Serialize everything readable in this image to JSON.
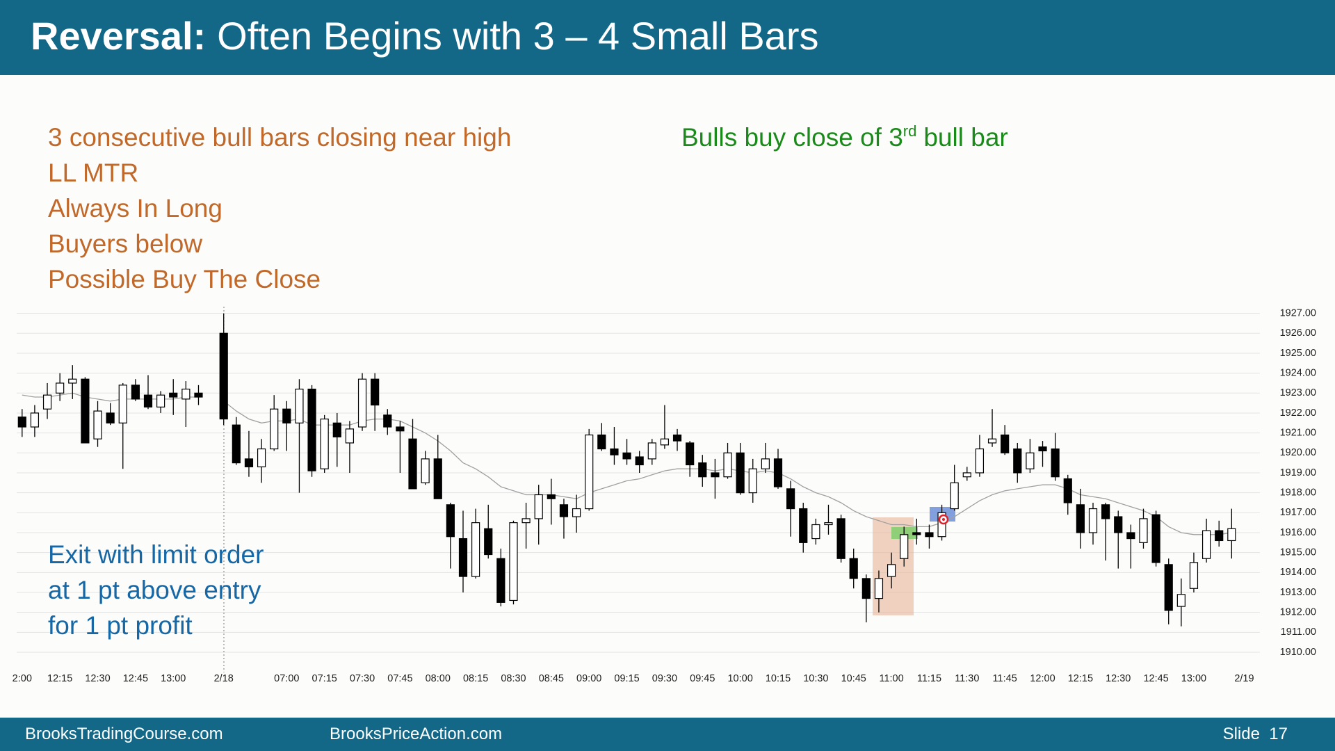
{
  "header": {
    "title_bold": "Reversal:",
    "title_rest": "Often Begins with 3 – 4 Small Bars"
  },
  "annotations": {
    "setup": [
      "3 consecutive bull bars closing near high",
      "LL MTR",
      "Always In Long",
      "Buyers below",
      "Possible Buy The Close"
    ],
    "entry": {
      "before": "Bulls buy close of 3",
      "sup": "rd",
      "after": "bull bar"
    },
    "exit": [
      "Exit with limit order",
      "at 1 pt above entry",
      "for 1 pt profit"
    ]
  },
  "chart_data": {
    "type": "candlestick",
    "categories": [
      "2:00",
      null,
      null,
      "12:15",
      null,
      null,
      "12:30",
      null,
      null,
      "12:45",
      null,
      null,
      "13:00",
      null,
      null,
      null,
      "2/18",
      null,
      null,
      null,
      null,
      "07:00",
      null,
      null,
      "07:15",
      null,
      null,
      "07:30",
      null,
      null,
      "07:45",
      null,
      null,
      "08:00",
      null,
      null,
      "08:15",
      null,
      null,
      "08:30",
      null,
      null,
      "08:45",
      null,
      null,
      "09:00",
      null,
      null,
      "09:15",
      null,
      null,
      "09:30",
      null,
      null,
      "09:45",
      null,
      null,
      "10:00",
      null,
      null,
      "10:15",
      null,
      null,
      "10:30",
      null,
      null,
      "10:45",
      null,
      null,
      "11:00",
      null,
      null,
      "11:15",
      null,
      null,
      "11:30",
      null,
      null,
      "11:45",
      null,
      null,
      "12:00",
      null,
      null,
      "12:15",
      null,
      null,
      "12:30",
      null,
      null,
      "12:45",
      null,
      null,
      "13:00",
      null,
      null,
      null,
      "2/19"
    ],
    "open": [
      1921.8,
      1921.3,
      1922.2,
      1923.0,
      1923.5,
      1923.7,
      1920.7,
      1922.0,
      1921.5,
      1923.4,
      1922.9,
      1922.3,
      1923.0,
      1922.7,
      1923.0,
      null,
      1926.0,
      1921.4,
      1919.7,
      1919.3,
      1920.2,
      1922.2,
      1921.5,
      1923.2,
      1919.2,
      1921.5,
      1920.5,
      1921.3,
      1923.7,
      1921.9,
      1921.3,
      1920.7,
      1918.5,
      1919.7,
      1917.4,
      1915.7,
      1913.8,
      1916.2,
      1914.7,
      1912.6,
      1916.5,
      1916.7,
      1917.9,
      1917.4,
      1916.8,
      1917.2,
      1920.9,
      1920.2,
      1920.0,
      1919.8,
      1919.7,
      1920.4,
      1920.9,
      1920.5,
      1919.5,
      1919.0,
      1918.8,
      1920.0,
      1918.0,
      1919.2,
      1919.7,
      1918.2,
      1917.2,
      1915.7,
      1916.4,
      1916.7,
      1914.7,
      1913.7,
      1912.7,
      1913.8,
      1914.7,
      1916.0,
      1916.0,
      1915.8,
      1917.2,
      1918.8,
      1919.0,
      1920.5,
      1920.9,
      1920.2,
      1919.2,
      1920.3,
      1920.2,
      1918.7,
      1917.4,
      1916.0,
      1917.4,
      1916.8,
      1916.0,
      1915.5,
      1916.9,
      1914.4,
      1912.3,
      1913.2,
      1914.7,
      1916.1,
      1915.6,
      null
    ],
    "high": [
      1922.2,
      1922.4,
      1923.5,
      1924.0,
      1924.4,
      1923.8,
      1922.6,
      1922.5,
      1923.5,
      1923.7,
      1923.9,
      1923.1,
      1923.7,
      1923.6,
      1923.4,
      null,
      1927.0,
      1921.8,
      1921.1,
      1920.7,
      1922.9,
      1922.6,
      1923.7,
      1923.4,
      1921.9,
      1922.0,
      1921.6,
      1924.0,
      1924.0,
      1922.2,
      1921.6,
      1921.7,
      1920.1,
      1920.9,
      1917.5,
      1917.1,
      1917.2,
      1917.4,
      1915.2,
      1916.6,
      1917.5,
      1918.4,
      1918.7,
      1917.7,
      1917.9,
      1921.2,
      1921.5,
      1921.3,
      1920.7,
      1920.1,
      1920.7,
      1922.4,
      1921.2,
      1920.6,
      1919.9,
      1919.7,
      1920.5,
      1920.5,
      1919.7,
      1920.5,
      1920.2,
      1918.6,
      1917.5,
      1916.7,
      1917.4,
      1916.9,
      1915.2,
      1913.9,
      1914.1,
      1915.0,
      1916.3,
      1916.7,
      1916.4,
      1917.4,
      1919.4,
      1919.3,
      1920.9,
      1922.2,
      1921.4,
      1920.5,
      1920.7,
      1920.6,
      1921.0,
      1918.9,
      1918.2,
      1917.5,
      1917.5,
      1917.1,
      1916.4,
      1917.2,
      1917.1,
      1914.7,
      1913.7,
      1915.0,
      1916.7,
      1916.6,
      1917.2,
      null
    ],
    "low": [
      1920.8,
      1920.8,
      1921.7,
      1922.6,
      1922.7,
      1920.5,
      1920.3,
      1921.4,
      1919.2,
      1922.6,
      1922.2,
      1922.0,
      1921.9,
      1921.3,
      1922.4,
      null,
      1921.4,
      1919.4,
      1918.8,
      1918.5,
      1920.1,
      1920.1,
      1918.0,
      1918.8,
      1919.0,
      1919.3,
      1919.0,
      1921.1,
      1921.1,
      1920.9,
      1919.0,
      1918.2,
      1918.4,
      1917.7,
      1914.2,
      1913.0,
      1913.7,
      1914.7,
      1912.3,
      1912.4,
      1915.2,
      1915.4,
      1916.4,
      1915.7,
      1916.0,
      1917.1,
      1920.1,
      1919.4,
      1919.4,
      1919.0,
      1919.4,
      1920.2,
      1920.1,
      1918.8,
      1918.3,
      1917.7,
      1918.7,
      1917.9,
      1917.5,
      1919.0,
      1918.2,
      1915.8,
      1915.0,
      1915.4,
      1915.9,
      1914.5,
      1913.2,
      1911.5,
      1912.0,
      1913.2,
      1914.3,
      1915.4,
      1915.2,
      1915.6,
      1917.1,
      1918.6,
      1918.8,
      1920.3,
      1919.9,
      1918.5,
      1919.0,
      1919.3,
      1918.6,
      1916.9,
      1915.2,
      1915.4,
      1914.6,
      1914.2,
      1914.2,
      1915.2,
      1914.3,
      1911.4,
      1911.3,
      1913.0,
      1914.5,
      1915.3,
      1914.7,
      null
    ],
    "close": [
      1921.3,
      1922.0,
      1922.9,
      1923.5,
      1923.7,
      1920.5,
      1922.1,
      1921.5,
      1923.4,
      1922.7,
      1922.3,
      1922.9,
      1922.8,
      1923.2,
      1922.8,
      null,
      1921.7,
      1919.5,
      1919.3,
      1920.2,
      1922.2,
      1921.5,
      1923.2,
      1919.1,
      1921.7,
      1920.8,
      1921.2,
      1923.7,
      1922.4,
      1921.3,
      1921.1,
      1918.2,
      1919.7,
      1917.7,
      1915.8,
      1913.8,
      1916.5,
      1914.9,
      1912.5,
      1916.5,
      1916.7,
      1917.9,
      1917.7,
      1916.8,
      1917.2,
      1920.9,
      1920.2,
      1919.9,
      1919.7,
      1919.4,
      1920.5,
      1920.7,
      1920.6,
      1919.4,
      1918.8,
      1918.8,
      1920.0,
      1918.0,
      1919.2,
      1919.7,
      1918.3,
      1917.2,
      1915.5,
      1916.4,
      1916.5,
      1914.7,
      1913.7,
      1912.7,
      1913.7,
      1914.4,
      1915.9,
      1915.9,
      1915.8,
      1917.0,
      1918.5,
      1919.0,
      1920.2,
      1920.7,
      1920.0,
      1919.0,
      1920.0,
      1920.1,
      1918.8,
      1917.5,
      1916.0,
      1917.2,
      1916.7,
      1916.0,
      1915.7,
      1916.7,
      1914.5,
      1912.1,
      1912.9,
      1914.5,
      1916.1,
      1915.6,
      1916.2,
      null
    ],
    "ema": [
      1922.9,
      1922.8,
      1922.8,
      1922.9,
      1923.0,
      1922.8,
      1922.7,
      1922.6,
      1922.7,
      1922.7,
      1922.7,
      1922.7,
      1922.7,
      1922.8,
      1922.8,
      null,
      1922.6,
      1922.1,
      1921.7,
      1921.5,
      1921.6,
      1921.6,
      1921.7,
      1921.4,
      1921.4,
      1921.4,
      1921.4,
      1921.6,
      1921.7,
      1921.7,
      1921.6,
      1921.3,
      1921.0,
      1920.6,
      1920.1,
      1919.5,
      1919.2,
      1918.8,
      1918.3,
      1918.1,
      1917.9,
      1917.9,
      1917.9,
      1917.8,
      1917.7,
      1918.0,
      1918.2,
      1918.4,
      1918.6,
      1918.7,
      1918.9,
      1919.1,
      1919.2,
      1919.2,
      1919.2,
      1919.1,
      1919.2,
      1919.1,
      1919.0,
      1919.1,
      1919.0,
      1918.7,
      1918.3,
      1918.0,
      1917.8,
      1917.5,
      1917.1,
      1916.8,
      1916.6,
      1916.4,
      1916.4,
      1916.3,
      1916.3,
      1916.5,
      1916.8,
      1917.2,
      1917.6,
      1917.9,
      1918.1,
      1918.2,
      1918.3,
      1918.4,
      1918.4,
      1918.2,
      1917.9,
      1917.8,
      1917.7,
      1917.5,
      1917.3,
      1917.1,
      1916.8,
      1916.3,
      1916.0,
      1915.9,
      1915.9,
      1915.9,
      1916.0,
      null
    ],
    "up_color": "#ffffff",
    "down_color": "#000000",
    "wick_color": "#000000",
    "ema_color": "#a0a0a0",
    "ylim": [
      1910,
      1927
    ],
    "yticks": [
      {
        "value": 1910,
        "label": "1910.00"
      },
      {
        "value": 1911,
        "label": "1911.00"
      },
      {
        "value": 1912,
        "label": "1912.00"
      },
      {
        "value": 1913,
        "label": "1913.00"
      },
      {
        "value": 1914,
        "label": "1914.00"
      },
      {
        "value": 1915,
        "label": "1915.00"
      },
      {
        "value": 1916,
        "label": "1916.00"
      },
      {
        "value": 1917,
        "label": "1917.00"
      },
      {
        "value": 1918,
        "label": "1918.00"
      },
      {
        "value": 1919,
        "label": "1919.00"
      },
      {
        "value": 1920,
        "label": "1920.00"
      },
      {
        "value": 1921,
        "label": "1921.00"
      },
      {
        "value": 1922,
        "label": "1922.00"
      },
      {
        "value": 1923,
        "label": "1923.00"
      },
      {
        "value": 1924,
        "label": "1924.00"
      },
      {
        "value": 1925,
        "label": "1925.00"
      },
      {
        "value": 1926,
        "label": "1926.00"
      },
      {
        "value": 1927,
        "label": "1927.00"
      }
    ],
    "grid": true
  },
  "footer": {
    "left": "BrooksTradingCourse.com",
    "center": "BrooksPriceAction.com",
    "slide": "Slide  17"
  }
}
